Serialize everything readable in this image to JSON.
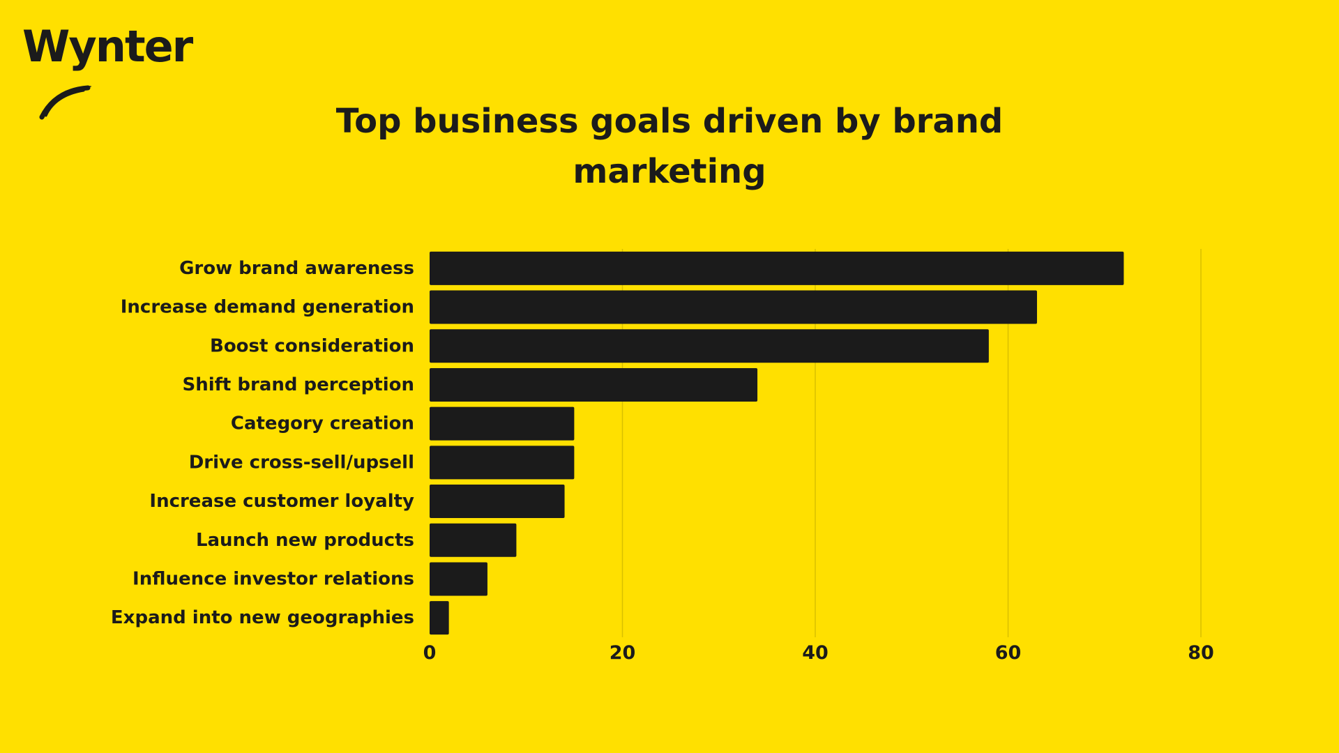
{
  "logo": {
    "text": "Wynter"
  },
  "colors": {
    "background": "#FFE000",
    "bar": "#1b1b1b",
    "grid": "#d9c000",
    "text": "#1b1b1b"
  },
  "chart_data": {
    "type": "bar",
    "orientation": "horizontal",
    "title": "Top business goals driven by brand marketing",
    "categories": [
      "Grow brand awareness",
      "Increase demand generation",
      "Boost consideration",
      "Shift brand perception",
      "Category creation",
      "Drive cross-sell/upsell",
      "Increase customer loyalty",
      "Launch new products",
      "Influence investor relations",
      "Expand into new geographies"
    ],
    "values": [
      72,
      63,
      58,
      34,
      15,
      15,
      14,
      9,
      6,
      2
    ],
    "xlim": [
      0,
      80
    ],
    "xticks": [
      "0",
      "20",
      "40",
      "60",
      "80"
    ],
    "xtick_values": [
      0,
      20,
      40,
      60,
      80
    ],
    "grid": true,
    "legend": "none"
  }
}
